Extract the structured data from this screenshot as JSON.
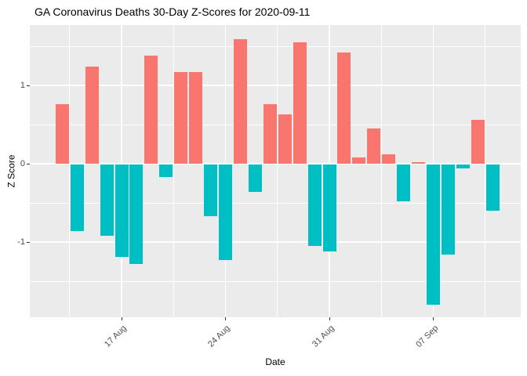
{
  "title": "GA Coronavirus Deaths 30-Day Z-Scores for 2020-09-11",
  "chart_data": {
    "type": "bar",
    "title": "GA Coronavirus Deaths 30-Day Z-Scores for 2020-09-11",
    "xlabel": "Date",
    "ylabel": "Z Score",
    "grid": "on",
    "legend": "none",
    "ylim": [
      -1.96,
      1.77
    ],
    "dates": [
      "2020-08-13",
      "2020-08-14",
      "2020-08-15",
      "2020-08-16",
      "2020-08-17",
      "2020-08-18",
      "2020-08-19",
      "2020-08-20",
      "2020-08-21",
      "2020-08-22",
      "2020-08-23",
      "2020-08-24",
      "2020-08-25",
      "2020-08-26",
      "2020-08-27",
      "2020-08-28",
      "2020-08-29",
      "2020-08-30",
      "2020-08-31",
      "2020-09-01",
      "2020-09-02",
      "2020-09-03",
      "2020-09-04",
      "2020-09-05",
      "2020-09-06",
      "2020-09-07",
      "2020-09-08",
      "2020-09-09",
      "2020-09-10",
      "2020-09-11"
    ],
    "values": [
      0.76,
      -0.85,
      1.24,
      -0.91,
      -1.18,
      -1.27,
      1.38,
      -0.16,
      1.17,
      1.17,
      -0.66,
      -1.22,
      1.59,
      -0.35,
      0.76,
      0.63,
      1.55,
      -1.04,
      -1.11,
      1.42,
      0.08,
      0.45,
      0.12,
      -0.47,
      0.02,
      -1.79,
      -1.15,
      -0.05,
      0.56,
      -0.59
    ],
    "x_ticks": [
      {
        "label": "17 Aug",
        "day_index": 4
      },
      {
        "label": "24 Aug",
        "day_index": 11
      },
      {
        "label": "31 Aug",
        "day_index": 18
      },
      {
        "label": "07 Sep",
        "day_index": 25
      }
    ],
    "x_minor_day_index": [
      0.5,
      7.5,
      14.5,
      21.5,
      28.5
    ],
    "y_ticks": [
      {
        "label": "1",
        "value": 1
      },
      {
        "label": "0",
        "value": 0
      },
      {
        "label": "-1",
        "value": -1
      }
    ],
    "y_minor": [
      1.5,
      0.5,
      -0.5,
      -1.5
    ],
    "colors": {
      "positive": "#F8766D",
      "negative": "#00BFC4",
      "panel_background": "#EBEBEB",
      "grid": "#FFFFFF",
      "axis_text": "#4D4D4D",
      "tick_mark": "#333333",
      "title_text": "#000000"
    }
  }
}
